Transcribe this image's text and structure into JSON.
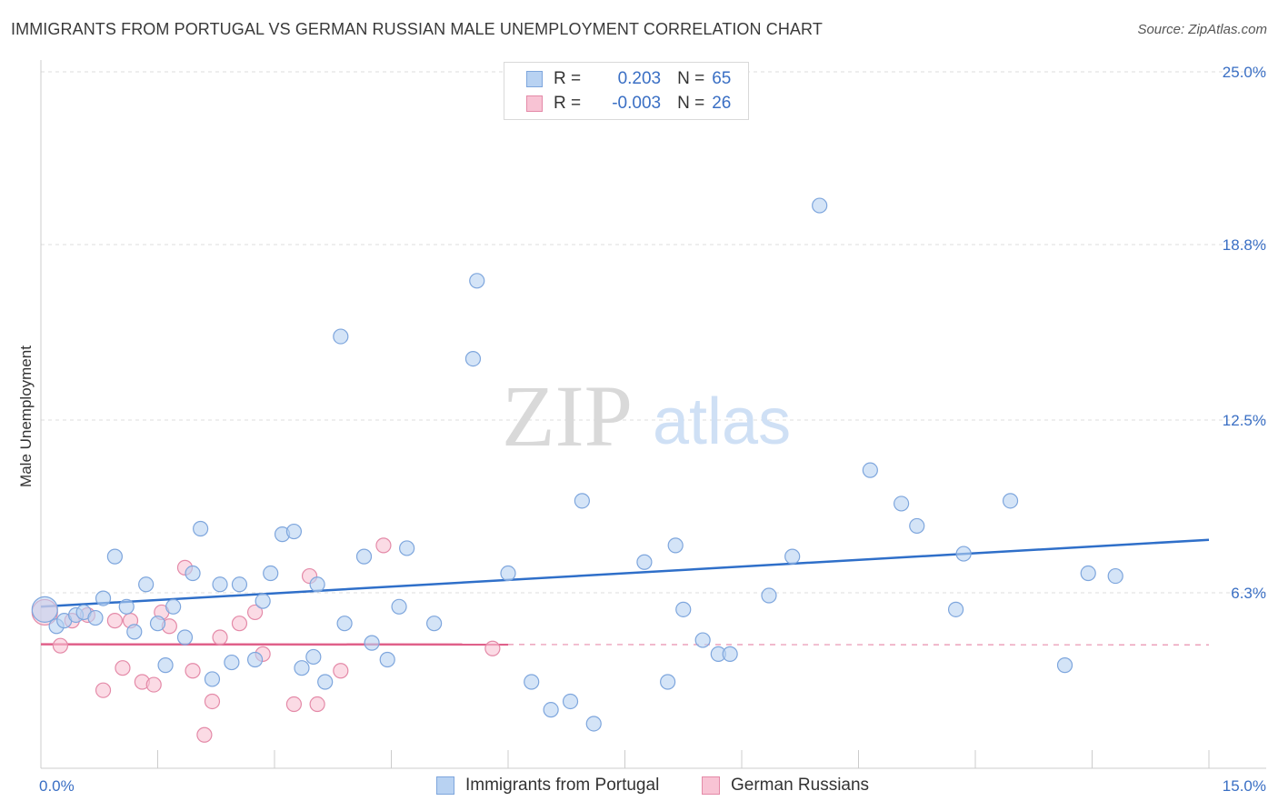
{
  "title": "IMMIGRANTS FROM PORTUGAL VS GERMAN RUSSIAN MALE UNEMPLOYMENT CORRELATION CHART",
  "source": "Source: ZipAtlas.com",
  "watermark": {
    "zip": "ZIP",
    "atlas": "atlas"
  },
  "colors": {
    "blue_fill": "#b8d2f2",
    "blue_stroke": "#7ea6dd",
    "blue_line": "#2f6fc9",
    "pink_fill": "#f8c3d4",
    "pink_stroke": "#e48aa8",
    "pink_line": "#e0608a",
    "tick_text": "#3a6fc4",
    "grid": "#dddddd"
  },
  "legend": {
    "rows": [
      {
        "r_label": "R =",
        "r_value": "0.203",
        "n_label": "N =",
        "n_value": "65"
      },
      {
        "r_label": "R =",
        "r_value": "-0.003",
        "n_label": "N =",
        "n_value": "26"
      }
    ]
  },
  "bottom_legend": {
    "series1": "Immigrants from Portugal",
    "series2": "German Russians"
  },
  "chart_data": {
    "type": "scatter",
    "xlabel": "",
    "ylabel": "Male Unemployment",
    "xlim": [
      0,
      15
    ],
    "ylim": [
      0,
      25
    ],
    "x_tick_labels": [
      "0.0%",
      "15.0%"
    ],
    "y_ticks": [
      6.3,
      12.5,
      18.8,
      25.0
    ],
    "y_tick_labels": [
      "6.3%",
      "12.5%",
      "18.8%",
      "25.0%"
    ],
    "grid": "horizontal dashed",
    "legend_position": "top-center",
    "series": [
      {
        "name": "Immigrants from Portugal",
        "color": "#b8d2f2",
        "trend": {
          "x": [
            0,
            15
          ],
          "y": [
            5.8,
            8.2
          ]
        },
        "points": [
          [
            0.05,
            5.7
          ],
          [
            0.2,
            5.1
          ],
          [
            0.3,
            5.3
          ],
          [
            0.45,
            5.5
          ],
          [
            0.55,
            5.6
          ],
          [
            0.7,
            5.4
          ],
          [
            0.8,
            6.1
          ],
          [
            0.95,
            7.6
          ],
          [
            1.1,
            5.8
          ],
          [
            1.2,
            4.9
          ],
          [
            1.35,
            6.6
          ],
          [
            1.5,
            5.2
          ],
          [
            1.6,
            3.7
          ],
          [
            1.7,
            5.8
          ],
          [
            1.85,
            4.7
          ],
          [
            1.95,
            7.0
          ],
          [
            2.05,
            8.6
          ],
          [
            2.2,
            3.2
          ],
          [
            2.3,
            6.6
          ],
          [
            2.45,
            3.8
          ],
          [
            2.55,
            6.6
          ],
          [
            2.75,
            3.9
          ],
          [
            2.85,
            6.0
          ],
          [
            2.95,
            7.0
          ],
          [
            3.1,
            8.4
          ],
          [
            3.25,
            8.5
          ],
          [
            3.35,
            3.6
          ],
          [
            3.5,
            4.0
          ],
          [
            3.55,
            6.6
          ],
          [
            3.65,
            3.1
          ],
          [
            3.85,
            15.5
          ],
          [
            3.9,
            5.2
          ],
          [
            4.15,
            7.6
          ],
          [
            4.25,
            4.5
          ],
          [
            4.45,
            3.9
          ],
          [
            4.6,
            5.8
          ],
          [
            4.7,
            7.9
          ],
          [
            5.05,
            5.2
          ],
          [
            5.55,
            14.7
          ],
          [
            5.6,
            17.5
          ],
          [
            6.0,
            7.0
          ],
          [
            6.3,
            3.1
          ],
          [
            6.55,
            2.1
          ],
          [
            6.8,
            2.4
          ],
          [
            6.95,
            9.6
          ],
          [
            7.1,
            1.6
          ],
          [
            7.75,
            7.4
          ],
          [
            8.05,
            3.1
          ],
          [
            8.15,
            8.0
          ],
          [
            8.25,
            5.7
          ],
          [
            8.5,
            4.6
          ],
          [
            8.7,
            4.1
          ],
          [
            8.85,
            4.1
          ],
          [
            9.35,
            6.2
          ],
          [
            9.65,
            7.6
          ],
          [
            10.0,
            20.2
          ],
          [
            10.65,
            10.7
          ],
          [
            11.05,
            9.5
          ],
          [
            11.25,
            8.7
          ],
          [
            11.75,
            5.7
          ],
          [
            11.85,
            7.7
          ],
          [
            12.45,
            9.6
          ],
          [
            13.15,
            3.7
          ],
          [
            13.45,
            7.0
          ],
          [
            13.8,
            6.9
          ]
        ]
      },
      {
        "name": "German Russians",
        "color": "#f8c3d4",
        "trend": {
          "x": [
            0,
            15
          ],
          "y": [
            4.45,
            4.43
          ]
        },
        "trend_solid_end_x": 6.0,
        "points": [
          [
            0.05,
            5.6
          ],
          [
            0.25,
            4.4
          ],
          [
            0.4,
            5.3
          ],
          [
            0.6,
            5.5
          ],
          [
            0.8,
            2.8
          ],
          [
            0.95,
            5.3
          ],
          [
            1.05,
            3.6
          ],
          [
            1.15,
            5.3
          ],
          [
            1.3,
            3.1
          ],
          [
            1.45,
            3.0
          ],
          [
            1.55,
            5.6
          ],
          [
            1.65,
            5.1
          ],
          [
            1.85,
            7.2
          ],
          [
            1.95,
            3.5
          ],
          [
            2.1,
            1.2
          ],
          [
            2.2,
            2.4
          ],
          [
            2.3,
            4.7
          ],
          [
            2.55,
            5.2
          ],
          [
            2.75,
            5.6
          ],
          [
            2.85,
            4.1
          ],
          [
            3.25,
            2.3
          ],
          [
            3.45,
            6.9
          ],
          [
            3.55,
            2.3
          ],
          [
            3.85,
            3.5
          ],
          [
            4.4,
            8.0
          ],
          [
            5.8,
            4.3
          ]
        ]
      }
    ]
  }
}
